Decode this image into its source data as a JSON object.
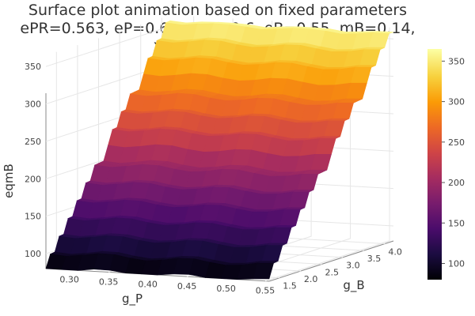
{
  "chart_data": {
    "type": "surface",
    "title_lines": [
      "Surface plot animation based on fixed parameters",
      "ePR=0.563, eP=0.63, eBR=0.6, eB=0.55, mB=0.14,",
      "x=0.0, aP=0.001"
    ],
    "xlabel": "g_P",
    "ylabel": "g_B",
    "zlabel": "eqmB",
    "x_ticks": [
      "0.30",
      "0.35",
      "0.40",
      "0.45",
      "0.50",
      "0.55"
    ],
    "y_ticks": [
      "1.5",
      "2.0",
      "2.5",
      "3.0",
      "3.5",
      "4.0"
    ],
    "z_ticks": [
      "100",
      "150",
      "200",
      "250",
      "300",
      "350"
    ],
    "colorbar_ticks": [
      "100",
      "150",
      "200",
      "250",
      "300",
      "350"
    ],
    "x_range": [
      0.27,
      0.555
    ],
    "y_range": [
      1.25,
      4.2
    ],
    "z_range": [
      80,
      365
    ],
    "colorbar_range": [
      80,
      365
    ],
    "colormap": "inferno",
    "colormap_stops": [
      "#000004",
      "#1b0c41",
      "#4a0c6b",
      "#781c6d",
      "#a52c60",
      "#cf4446",
      "#ed6925",
      "#fb9b06",
      "#f7d13d",
      "#fcffa4"
    ],
    "grid": true
  }
}
